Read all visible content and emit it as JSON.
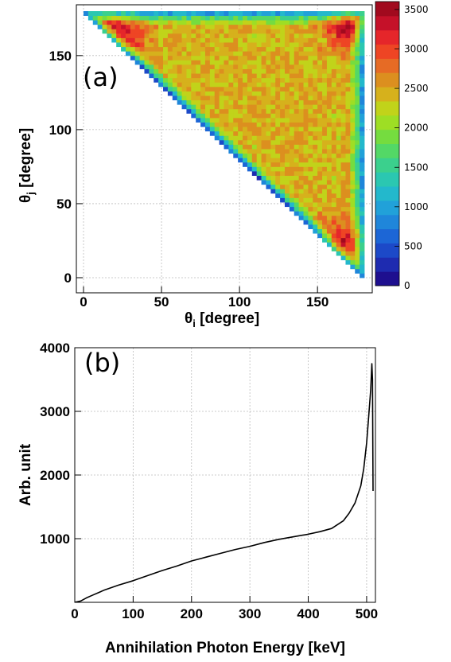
{
  "chart_data": [
    {
      "type": "heatmap",
      "panel_label": "(a)",
      "xlabel": "θi [degree]",
      "xlabel_main": "θ",
      "xlabel_sub": "i",
      "xlabel_rest": " [degree]",
      "ylabel": "θj [degree]",
      "ylabel_main": "θ",
      "ylabel_sub": "j",
      "ylabel_rest": " [degree]",
      "xlim": [
        0,
        180
      ],
      "ylim": [
        0,
        180
      ],
      "xticks": [
        0,
        50,
        100,
        150
      ],
      "yticks": [
        0,
        50,
        100,
        150
      ],
      "grid": true,
      "colorbar": {
        "min": 0,
        "max": 3600,
        "ticks": [
          0,
          500,
          1000,
          1500,
          2000,
          2500,
          3000,
          3500
        ],
        "colors": [
          "#1e0f8f",
          "#1e2bb0",
          "#1c49c8",
          "#1c66d6",
          "#1f86da",
          "#21a1d9",
          "#23b8cc",
          "#2bc7b1",
          "#3bd08d",
          "#53d866",
          "#75dc3f",
          "#9ede24",
          "#c1d31a",
          "#d6b11c",
          "#dc8f1f",
          "#e66b25",
          "#ee4524",
          "#e5262a",
          "#c51129",
          "#a10a1e"
        ]
      },
      "description_note": ""
    },
    {
      "type": "line",
      "panel_label": "(b)",
      "xlabel": "Annihilation Photon Energy  [keV]",
      "ylabel": "Arb. unit",
      "xlim": [
        0,
        511
      ],
      "ylim": [
        0,
        4000
      ],
      "xticks": [
        0,
        100,
        200,
        300,
        400,
        500
      ],
      "yticks": [
        1000,
        2000,
        3000,
        4000
      ],
      "grid": true,
      "series": [
        {
          "x": [
            0,
            10,
            20,
            30,
            40,
            50,
            75,
            100,
            125,
            150,
            175,
            200,
            225,
            250,
            275,
            300,
            325,
            350,
            375,
            400,
            420,
            440,
            460,
            470,
            480,
            490,
            495,
            500,
            503,
            505,
            507,
            509,
            510,
            511
          ],
          "values": [
            0,
            20,
            70,
            110,
            150,
            190,
            270,
            340,
            420,
            500,
            570,
            650,
            710,
            770,
            830,
            880,
            940,
            990,
            1030,
            1070,
            1110,
            1160,
            1280,
            1400,
            1560,
            1830,
            2100,
            2500,
            2850,
            3100,
            3350,
            3750,
            3500,
            1750
          ]
        }
      ]
    }
  ]
}
